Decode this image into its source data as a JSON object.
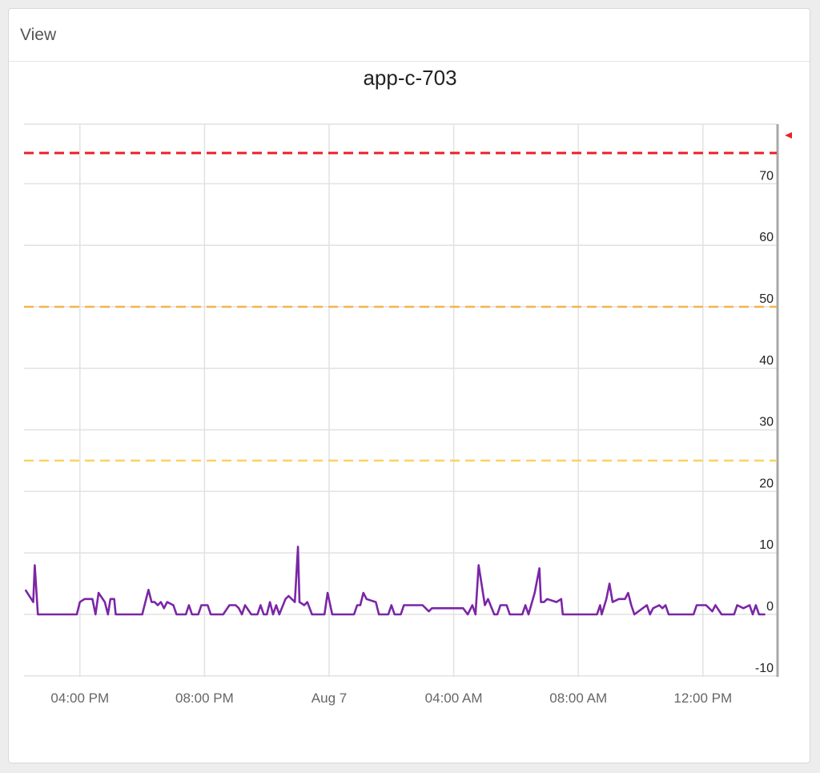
{
  "panel": {
    "title": "View"
  },
  "chart_data": {
    "type": "line",
    "title": "app-c-703",
    "xlabel": "",
    "ylabel": "",
    "ylim": [
      -12,
      80
    ],
    "y_ticks": [
      -10,
      0,
      10,
      20,
      30,
      40,
      50,
      60,
      70
    ],
    "x_range_hours": [
      0,
      23
    ],
    "x_ticks": [
      {
        "label": "04:00 PM",
        "hour": 2
      },
      {
        "label": "08:00 PM",
        "hour": 6
      },
      {
        "label": "Aug 7",
        "hour": 10
      },
      {
        "label": "04:00 AM",
        "hour": 14
      },
      {
        "label": "08:00 AM",
        "hour": 18
      },
      {
        "label": "12:00 PM",
        "hour": 22
      }
    ],
    "y_axis_side": "right",
    "grid": true,
    "thresholds": [
      {
        "value": 75,
        "color": "#e8202a"
      },
      {
        "value": 50,
        "color": "#f5b44c"
      },
      {
        "value": 25,
        "color": "#fbd25e"
      }
    ],
    "marker_color": "#e8202a",
    "series": [
      {
        "color": "#7b26a6",
        "points": [
          [
            0.25,
            4
          ],
          [
            0.5,
            2
          ],
          [
            0.55,
            8
          ],
          [
            0.65,
            0
          ],
          [
            1.9,
            0
          ],
          [
            2.0,
            2
          ],
          [
            2.15,
            2.5
          ],
          [
            2.4,
            2.5
          ],
          [
            2.5,
            0
          ],
          [
            2.6,
            3.5
          ],
          [
            2.8,
            2
          ],
          [
            2.9,
            0
          ],
          [
            2.98,
            2.5
          ],
          [
            3.1,
            2.5
          ],
          [
            3.15,
            0
          ],
          [
            4.0,
            0
          ],
          [
            4.2,
            4
          ],
          [
            4.3,
            2
          ],
          [
            4.4,
            2
          ],
          [
            4.5,
            1.5
          ],
          [
            4.6,
            2
          ],
          [
            4.7,
            1
          ],
          [
            4.8,
            2
          ],
          [
            5.0,
            1.5
          ],
          [
            5.1,
            0
          ],
          [
            5.4,
            0
          ],
          [
            5.5,
            1.5
          ],
          [
            5.6,
            0
          ],
          [
            5.8,
            0
          ],
          [
            5.9,
            1.5
          ],
          [
            6.1,
            1.5
          ],
          [
            6.2,
            0
          ],
          [
            6.6,
            0
          ],
          [
            6.8,
            1.5
          ],
          [
            7.0,
            1.5
          ],
          [
            7.1,
            1
          ],
          [
            7.2,
            0
          ],
          [
            7.3,
            1.5
          ],
          [
            7.5,
            0
          ],
          [
            7.7,
            0
          ],
          [
            7.8,
            1.5
          ],
          [
            7.9,
            0
          ],
          [
            8.0,
            0
          ],
          [
            8.1,
            2
          ],
          [
            8.2,
            0
          ],
          [
            8.3,
            1.5
          ],
          [
            8.4,
            0
          ],
          [
            8.6,
            2.5
          ],
          [
            8.7,
            3
          ],
          [
            8.9,
            2
          ],
          [
            9.0,
            11
          ],
          [
            9.05,
            2
          ],
          [
            9.2,
            1.5
          ],
          [
            9.3,
            2
          ],
          [
            9.45,
            0
          ],
          [
            9.85,
            0
          ],
          [
            9.95,
            3.5
          ],
          [
            10.1,
            0
          ],
          [
            10.2,
            0
          ],
          [
            10.8,
            0
          ],
          [
            10.9,
            1.5
          ],
          [
            11.0,
            1.5
          ],
          [
            11.1,
            3.5
          ],
          [
            11.2,
            2.5
          ],
          [
            11.5,
            2
          ],
          [
            11.6,
            0
          ],
          [
            11.9,
            0
          ],
          [
            12.0,
            1.5
          ],
          [
            12.1,
            0
          ],
          [
            12.3,
            0
          ],
          [
            12.4,
            1.5
          ],
          [
            12.8,
            1.5
          ],
          [
            13.0,
            1.5
          ],
          [
            13.2,
            0.5
          ],
          [
            13.3,
            1
          ],
          [
            13.6,
            1
          ],
          [
            14.0,
            1
          ],
          [
            14.3,
            1
          ],
          [
            14.45,
            0
          ],
          [
            14.6,
            1.5
          ],
          [
            14.7,
            0
          ],
          [
            14.8,
            8
          ],
          [
            15.0,
            1.5
          ],
          [
            15.1,
            2.5
          ],
          [
            15.3,
            0
          ],
          [
            15.4,
            0
          ],
          [
            15.5,
            1.5
          ],
          [
            15.7,
            1.5
          ],
          [
            15.8,
            0
          ],
          [
            16.2,
            0
          ],
          [
            16.3,
            1.5
          ],
          [
            16.4,
            0
          ],
          [
            16.6,
            3.5
          ],
          [
            16.75,
            7.5
          ],
          [
            16.8,
            2
          ],
          [
            16.9,
            2
          ],
          [
            17.0,
            2.5
          ],
          [
            17.3,
            2
          ],
          [
            17.45,
            2.5
          ],
          [
            17.5,
            0
          ],
          [
            18.6,
            0
          ],
          [
            18.7,
            1.5
          ],
          [
            18.75,
            0
          ],
          [
            18.9,
            2.5
          ],
          [
            19.0,
            5
          ],
          [
            19.1,
            2
          ],
          [
            19.3,
            2.5
          ],
          [
            19.5,
            2.5
          ],
          [
            19.6,
            3.5
          ],
          [
            19.7,
            1.5
          ],
          [
            19.8,
            0
          ],
          [
            20.2,
            1.5
          ],
          [
            20.3,
            0
          ],
          [
            20.4,
            1
          ],
          [
            20.6,
            1.5
          ],
          [
            20.7,
            1
          ],
          [
            20.8,
            1.5
          ],
          [
            20.9,
            0
          ],
          [
            21.7,
            0
          ],
          [
            21.8,
            1.5
          ],
          [
            22.1,
            1.5
          ],
          [
            22.3,
            0.5
          ],
          [
            22.4,
            1.5
          ],
          [
            22.6,
            0
          ],
          [
            23.0,
            0
          ],
          [
            23.1,
            1.5
          ],
          [
            23.3,
            1
          ],
          [
            23.5,
            1.5
          ],
          [
            23.6,
            0
          ],
          [
            23.7,
            1.5
          ],
          [
            23.8,
            0
          ],
          [
            24.0,
            0
          ]
        ]
      }
    ]
  }
}
